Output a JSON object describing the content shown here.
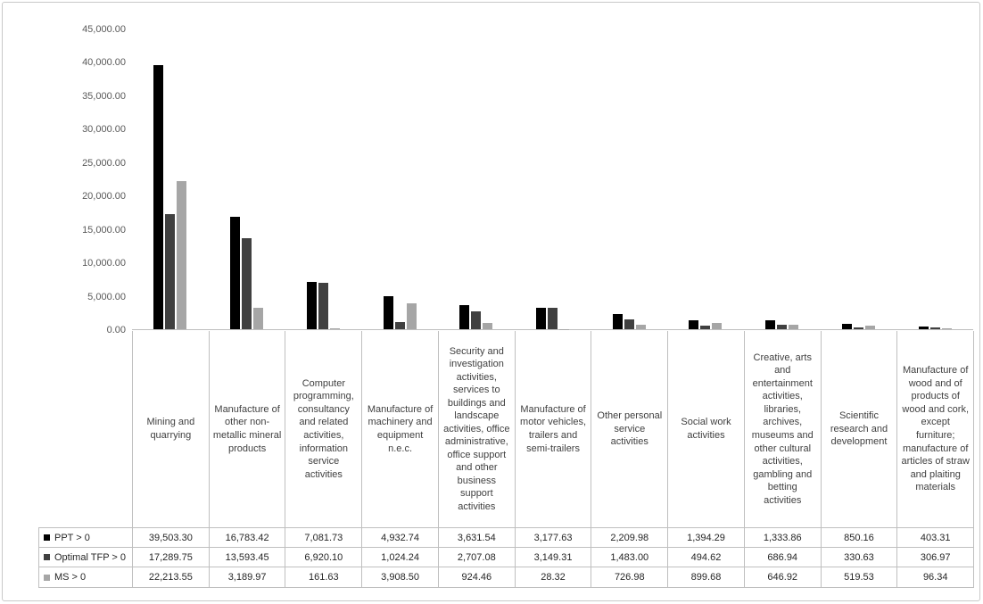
{
  "chart_data": {
    "type": "bar",
    "title": "",
    "xlabel": "",
    "ylabel": "",
    "ylim": [
      0,
      45000
    ],
    "ytick_step": 5000,
    "grid": false,
    "legend_position": "table-left",
    "yticks": [
      "45,000.00",
      "40,000.00",
      "35,000.00",
      "30,000.00",
      "25,000.00",
      "20,000.00",
      "15,000.00",
      "10,000.00",
      "5,000.00",
      "0.00"
    ],
    "categories": [
      "Mining and quarrying",
      "Manufacture of other non-metallic mineral products",
      "Computer programming, consultancy and related activities, information service activities",
      "Manufacture of machinery and equipment n.e.c.",
      "Security and investigation activities, services to buildings and landscape activities, office administrative, office support and other business support activities",
      "Manufacture of motor vehicles, trailers and semi-trailers",
      "Other personal service activities",
      "Social work activities",
      "Creative, arts and entertainment activities, libraries, archives, museums and other cultural activities, gambling and betting activities",
      "Scientific research and development",
      "Manufacture of wood and of products of wood and cork, except furniture; manufacture of articles of straw and plaiting materials"
    ],
    "series": [
      {
        "name": "PPT > 0",
        "color": "#000000",
        "values": [
          39503.3,
          16783.42,
          7081.73,
          4932.74,
          3631.54,
          3177.63,
          2209.98,
          1394.29,
          1333.86,
          850.16,
          403.31
        ]
      },
      {
        "name": "Optimal TFP > 0",
        "color": "#404040",
        "values": [
          17289.75,
          13593.45,
          6920.1,
          1024.24,
          2707.08,
          3149.31,
          1483.0,
          494.62,
          686.94,
          330.63,
          306.97
        ]
      },
      {
        "name": "MS > 0",
        "color": "#a6a6a6",
        "values": [
          22213.55,
          3189.97,
          161.63,
          3908.5,
          924.46,
          28.32,
          726.98,
          899.68,
          646.92,
          519.53,
          96.34
        ]
      }
    ]
  },
  "table": {
    "rows": [
      {
        "label": "PPT > 0",
        "values": [
          "39,503.30",
          "16,783.42",
          "7,081.73",
          "4,932.74",
          "3,631.54",
          "3,177.63",
          "2,209.98",
          "1,394.29",
          "1,333.86",
          "850.16",
          "403.31"
        ]
      },
      {
        "label": "Optimal TFP > 0",
        "values": [
          "17,289.75",
          "13,593.45",
          "6,920.10",
          "1,024.24",
          "2,707.08",
          "3,149.31",
          "1,483.00",
          "494.62",
          "686.94",
          "330.63",
          "306.97"
        ]
      },
      {
        "label": "MS > 0",
        "values": [
          "22,213.55",
          "3,189.97",
          "161.63",
          "3,908.50",
          "924.46",
          "28.32",
          "726.98",
          "899.68",
          "646.92",
          "519.53",
          "96.34"
        ]
      }
    ]
  }
}
